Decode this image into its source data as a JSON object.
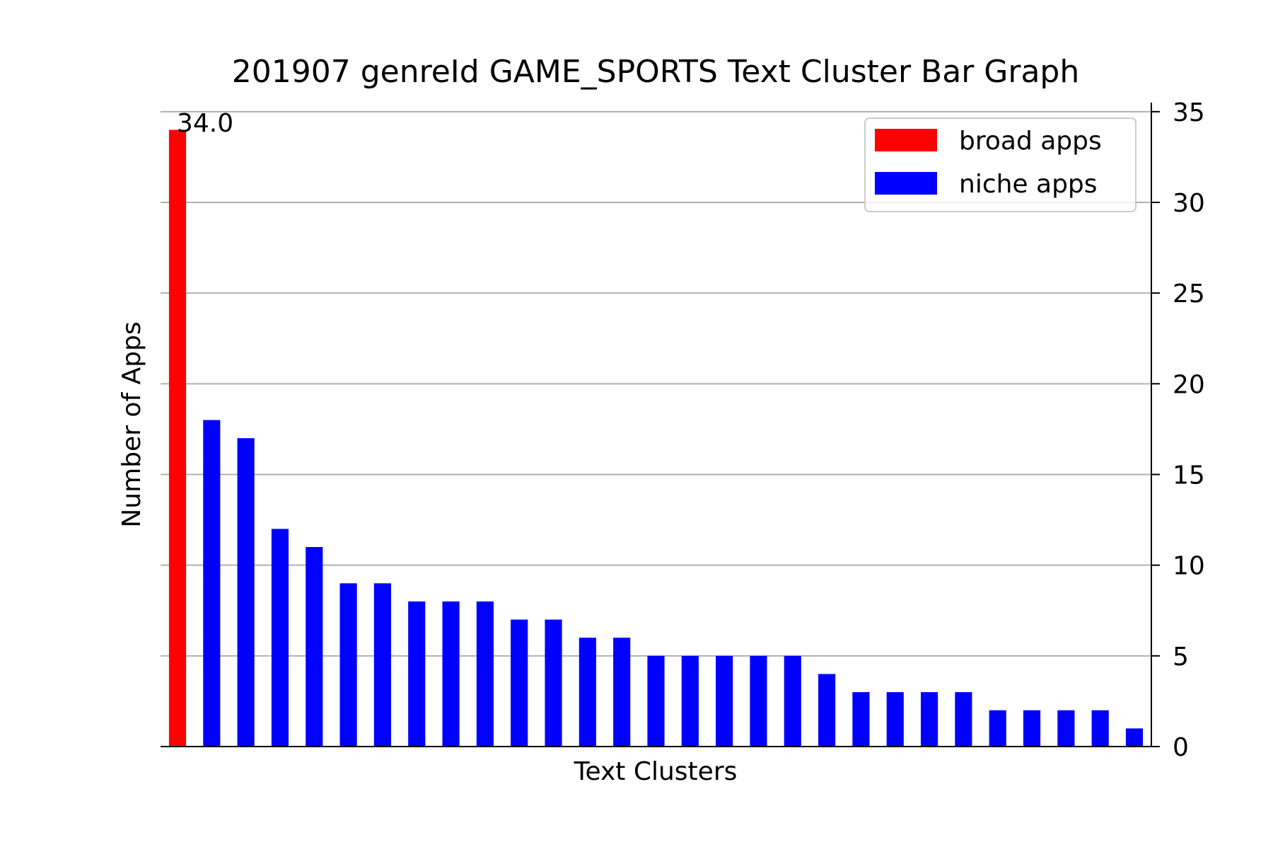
{
  "chart_data": {
    "type": "bar",
    "title": "201907 genreId GAME_SPORTS Text Cluster Bar Graph",
    "xlabel": "Text Clusters",
    "ylabel": "Number of Apps",
    "ylim": [
      0,
      35.5
    ],
    "yticks": [
      0,
      5,
      10,
      15,
      20,
      25,
      30,
      35
    ],
    "ytick_side": "right",
    "grid": "horizontal",
    "legend_position": "top-right",
    "annotation": "34.0",
    "series": [
      {
        "name": "broad apps",
        "color": "#ff0000",
        "values": [
          34
        ]
      },
      {
        "name": "niche apps",
        "color": "#0000ff",
        "values": [
          18,
          17,
          12,
          11,
          9,
          9,
          8,
          8,
          8,
          7,
          7,
          6,
          6,
          5,
          5,
          5,
          5,
          5,
          4,
          3,
          3,
          3,
          3,
          2,
          2,
          2,
          2,
          1
        ]
      }
    ]
  }
}
